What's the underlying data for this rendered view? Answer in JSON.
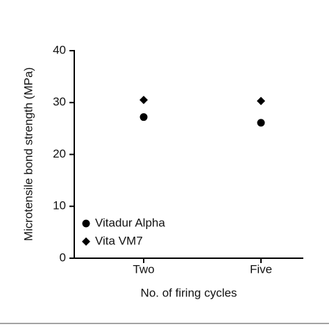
{
  "chart_data": {
    "type": "dot",
    "xlabel": "No. of firing cycles",
    "ylabel": "Microtensile bond strength (MPa)",
    "categories": [
      "Two",
      "Five"
    ],
    "series": [
      {
        "name": "Vitadur Alpha",
        "color": "#000000",
        "marker": "circle",
        "values": [
          27.2,
          26.1
        ]
      },
      {
        "name": "Vita VM7",
        "color": "#000000",
        "marker": "diamond",
        "values": [
          30.5,
          30.3
        ]
      }
    ],
    "ylim": [
      0,
      40
    ],
    "yticks": [
      0,
      10,
      20,
      30,
      40
    ],
    "legend": "lower-left"
  }
}
